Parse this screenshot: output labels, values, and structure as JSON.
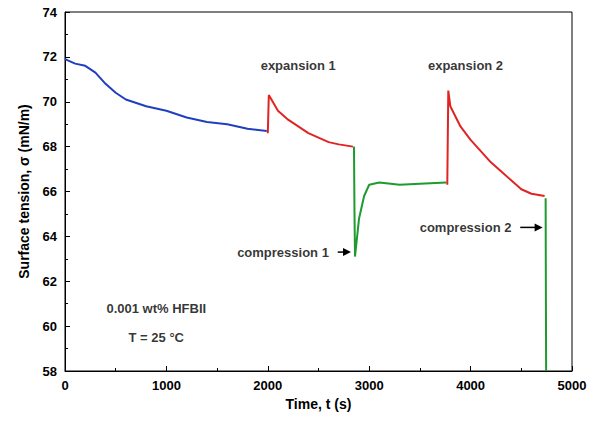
{
  "chart_data": {
    "type": "line",
    "xlabel": "Time, t (s)",
    "ylabel": "Surface tension, σ (mN/m)",
    "xlim": [
      0,
      5000
    ],
    "xticks": [
      0,
      1000,
      2000,
      3000,
      4000,
      5000
    ],
    "ylim": [
      58,
      74
    ],
    "yticks": [
      58,
      60,
      62,
      64,
      66,
      68,
      70,
      72,
      74
    ],
    "grid": false,
    "line_style": "solid",
    "series": [
      {
        "color": "#1f3fbf",
        "x": [
          0,
          100,
          200,
          300,
          400,
          500,
          600,
          800,
          1000,
          1200,
          1400,
          1600,
          1800,
          1990
        ],
        "values": [
          71.9,
          71.7,
          71.6,
          71.3,
          70.8,
          70.4,
          70.1,
          69.8,
          69.6,
          69.3,
          69.1,
          69.0,
          68.8,
          68.7
        ]
      },
      {
        "color": "#e02424",
        "x": [
          2000,
          2010,
          2100,
          2200,
          2300,
          2400,
          2500,
          2600,
          2700,
          2840
        ],
        "values": [
          68.6,
          70.3,
          69.6,
          69.2,
          68.9,
          68.6,
          68.4,
          68.2,
          68.1,
          68.0
        ]
      },
      {
        "color": "#1e9a2e",
        "x": [
          2850,
          2855,
          2860,
          2900,
          2950,
          3000,
          3100,
          3300,
          3500,
          3760
        ],
        "values": [
          68.0,
          65.0,
          63.1,
          64.8,
          65.8,
          66.3,
          66.4,
          66.3,
          66.35,
          66.4
        ]
      },
      {
        "color": "#e02424",
        "x": [
          3770,
          3780,
          3800,
          3900,
          4000,
          4100,
          4200,
          4300,
          4400,
          4500,
          4600,
          4730
        ],
        "values": [
          66.3,
          70.5,
          69.8,
          68.9,
          68.3,
          67.8,
          67.3,
          66.9,
          66.5,
          66.1,
          65.9,
          65.8
        ]
      },
      {
        "color": "#1e9a2e",
        "x": [
          4740,
          4742,
          4745
        ],
        "values": [
          65.7,
          62.0,
          58.0
        ]
      }
    ],
    "annotations": [
      {
        "text": "expansion 1",
        "x": 2300,
        "y": 71.6
      },
      {
        "text": "compression 1",
        "x": 2150,
        "y": 63.3
      },
      {
        "text": "expansion 2",
        "x": 3950,
        "y": 71.6
      },
      {
        "text": "compression 2",
        "x": 3950,
        "y": 64.4
      },
      {
        "text": "0.001 wt% HFBII",
        "x": 900,
        "y": 60.8
      },
      {
        "text": "T = 25 °C",
        "x": 900,
        "y": 59.5
      }
    ]
  }
}
